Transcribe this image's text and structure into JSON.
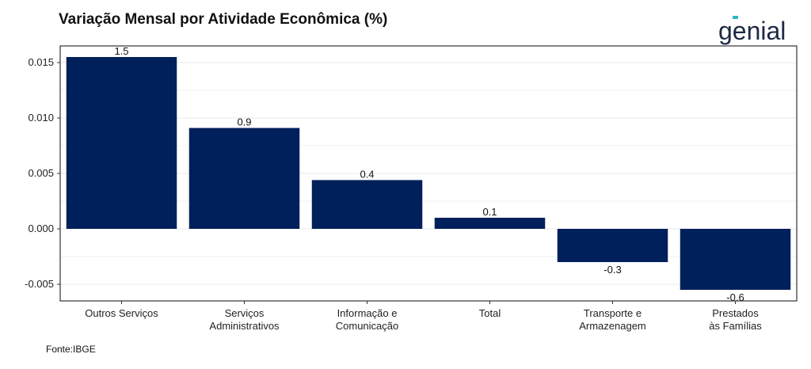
{
  "header": {
    "title": "Variação Mensal por Atividade Econômica (%)",
    "logo_text": "genial",
    "logo_color": "#1e2a44",
    "logo_accent": "#2bb7c9"
  },
  "footer": {
    "source": "Fonte:IBGE"
  },
  "chart_data": {
    "type": "bar",
    "title": "Variação Mensal por Atividade Econômica (%)",
    "xlabel": "",
    "ylabel": "",
    "categories": [
      [
        "Outros Serviços"
      ],
      [
        "Serviços",
        "Administrativos"
      ],
      [
        "Informação e",
        "Comunicação"
      ],
      [
        "Total"
      ],
      [
        "Transporte e",
        "Armazenagem"
      ],
      [
        "Prestados",
        "às Famílias"
      ]
    ],
    "values": [
      0.0155,
      0.0091,
      0.0044,
      0.001,
      -0.003,
      -0.0055
    ],
    "data_labels": [
      "1.5",
      "0.9",
      "0.4",
      "0.1",
      "-0.3",
      "-0.6"
    ],
    "ylim": [
      -0.0065,
      0.0165
    ],
    "yticks": [
      -0.005,
      0.0,
      0.005,
      0.01,
      0.015
    ],
    "ytick_labels": [
      "-0.005",
      "0.000",
      "0.005",
      "0.010",
      "0.015"
    ],
    "bar_color": "#00205b",
    "grid": true,
    "legend": "none"
  }
}
